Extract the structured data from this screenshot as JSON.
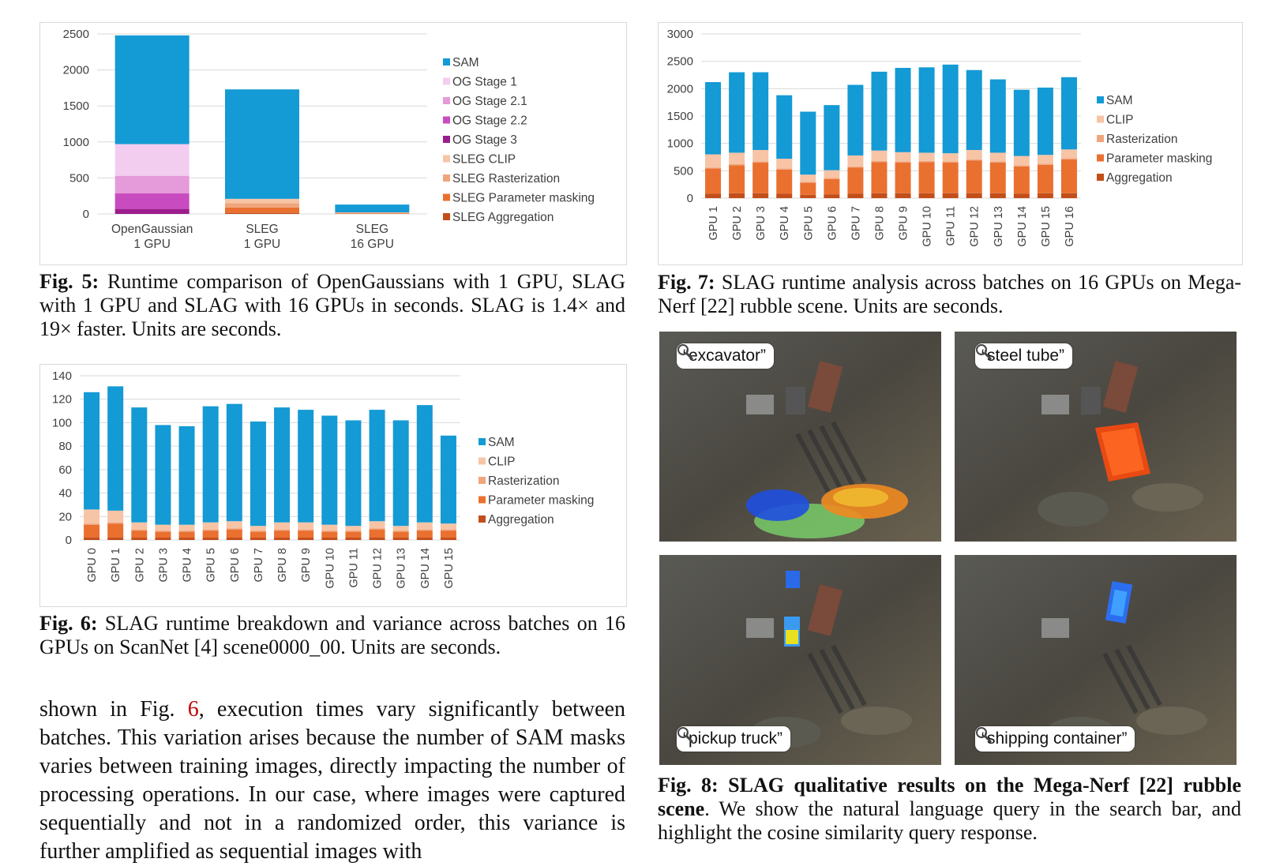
{
  "fig5": {
    "caption_label": "Fig. 5:",
    "caption_text": "Runtime comparison of OpenGaussians with 1 GPU, SLAG with 1 GPU and SLAG with 16 GPUs in seconds. SLAG is 1.4× and 19× faster. Units are seconds."
  },
  "fig6": {
    "caption_label": "Fig. 6:",
    "caption_text": "SLAG runtime breakdown and variance across batches on 16 GPUs on ScanNet [4] scene0000_00. Units are seconds."
  },
  "fig7": {
    "caption_label": "Fig. 7:",
    "caption_text": "SLAG runtime analysis across batches on 16 GPUs on Mega-Nerf [22] rubble scene. Units are seconds."
  },
  "fig8": {
    "caption_label": "Fig. 8:",
    "caption_bold": "SLAG qualitative results on the Mega-Nerf [22] rubble scene",
    "caption_text": ". We show the natural language query in the search bar, and highlight the cosine similarity query response.",
    "queries": [
      "“excavator”",
      "“steel tube”",
      "“pickup truck”",
      "“shipping container”"
    ]
  },
  "body": {
    "prefix": "shown in Fig. ",
    "ref": "6",
    "rest": ", execution times vary significantly between batches. This variation arises because the number of SAM masks varies between training images, directly impacting the number of processing operations. In our case, where images were captured sequentially and not in a randomized order, this variance is further amplified as sequential images with"
  },
  "colors": {
    "SAM": "#149ad4",
    "OG Stage 1": "#f3cdf0",
    "OG Stage 2.1": "#e59ad9",
    "OG Stage 2.2": "#c84cc0",
    "OG Stage 3": "#9c1d8e",
    "CLIP": "#f7c4a6",
    "Rasterization": "#f0a57c",
    "Parameter masking": "#ea7030",
    "Aggregation": "#c24e1a"
  },
  "chart_data": [
    {
      "id": "fig5",
      "type": "bar",
      "stacked": true,
      "categories": [
        [
          "OpenGaussian",
          "1 GPU"
        ],
        [
          "SLEG",
          "1 GPU"
        ],
        [
          "SLEG",
          "16 GPU"
        ]
      ],
      "ylim": [
        0,
        2500
      ],
      "yticks": [
        0,
        500,
        1000,
        1500,
        2000,
        2500
      ],
      "grid": true,
      "legend_position": "right",
      "legend": [
        "SAM",
        "OG Stage 1",
        "OG Stage 2.1",
        "OG Stage 2.2",
        "OG Stage 3",
        "SLEG CLIP",
        "SLEG Rasterization",
        "SLEG Parameter masking",
        "SLEG Aggregation"
      ],
      "series": [
        {
          "name": "OG Stage 3",
          "color_key": "OG Stage 3",
          "values": [
            70,
            0,
            0
          ]
        },
        {
          "name": "OG Stage 2.2",
          "color_key": "OG Stage 2.2",
          "values": [
            215,
            0,
            0
          ]
        },
        {
          "name": "OG Stage 2.1",
          "color_key": "OG Stage 2.1",
          "values": [
            245,
            0,
            0
          ]
        },
        {
          "name": "OG Stage 1",
          "color_key": "OG Stage 1",
          "values": [
            440,
            0,
            0
          ]
        },
        {
          "name": "SLEG Aggregation",
          "color_key": "Aggregation",
          "values": [
            0,
            15,
            2
          ]
        },
        {
          "name": "SLEG Parameter masking",
          "color_key": "Parameter masking",
          "values": [
            0,
            75,
            8
          ]
        },
        {
          "name": "SLEG Rasterization",
          "color_key": "Rasterization",
          "values": [
            0,
            60,
            6
          ]
        },
        {
          "name": "SLEG CLIP",
          "color_key": "CLIP",
          "values": [
            0,
            60,
            6
          ]
        },
        {
          "name": "SAM",
          "color_key": "SAM",
          "values": [
            1510,
            1520,
            108
          ]
        }
      ]
    },
    {
      "id": "fig6",
      "type": "bar",
      "stacked": true,
      "categories": [
        "GPU 0",
        "GPU 1",
        "GPU 2",
        "GPU 3",
        "GPU 4",
        "GPU 5",
        "GPU 6",
        "GPU 7",
        "GPU 8",
        "GPU 9",
        "GPU 10",
        "GPU 11",
        "GPU 12",
        "GPU 13",
        "GPU 14",
        "GPU 15"
      ],
      "ylim": [
        0,
        140
      ],
      "yticks": [
        0,
        20,
        40,
        60,
        80,
        100,
        120,
        140
      ],
      "grid": true,
      "legend_position": "right",
      "legend": [
        "SAM",
        "CLIP",
        "Rasterization",
        "Parameter masking",
        "Aggregation"
      ],
      "series": [
        {
          "name": "Aggregation",
          "values": [
            2,
            2,
            2,
            2,
            2,
            2,
            2,
            2,
            2,
            2,
            2,
            2,
            2,
            2,
            2,
            2
          ]
        },
        {
          "name": "Parameter masking",
          "values": [
            11,
            12,
            6,
            5,
            5,
            6,
            7,
            5,
            6,
            6,
            5,
            5,
            7,
            5,
            6,
            6
          ]
        },
        {
          "name": "Rasterization",
          "values": [
            1,
            1,
            1,
            1,
            1,
            1,
            1,
            1,
            1,
            1,
            1,
            1,
            1,
            1,
            1,
            1
          ]
        },
        {
          "name": "CLIP",
          "values": [
            12,
            10,
            6,
            5,
            5,
            6,
            6,
            4,
            6,
            6,
            5,
            4,
            6,
            4,
            6,
            5
          ]
        },
        {
          "name": "SAM",
          "values": [
            100,
            106,
            98,
            85,
            84,
            99,
            100,
            89,
            98,
            96,
            93,
            90,
            95,
            90,
            100,
            75
          ]
        }
      ]
    },
    {
      "id": "fig7",
      "type": "bar",
      "stacked": true,
      "categories": [
        "GPU 1",
        "GPU 2",
        "GPU 3",
        "GPU 4",
        "GPU 5",
        "GPU 6",
        "GPU 7",
        "GPU 8",
        "GPU 9",
        "GPU 10",
        "GPU 11",
        "GPU 12",
        "GPU 13",
        "GPU 14",
        "GPU 15",
        "GPU 16"
      ],
      "ylim": [
        0,
        3000
      ],
      "yticks": [
        0,
        500,
        1000,
        1500,
        2000,
        2500,
        3000
      ],
      "grid": true,
      "legend_position": "right",
      "legend": [
        "SAM",
        "CLIP",
        "Rasterization",
        "Parameter masking",
        "Aggregation"
      ],
      "series": [
        {
          "name": "Aggregation",
          "values": [
            80,
            90,
            90,
            80,
            60,
            70,
            80,
            90,
            90,
            90,
            90,
            90,
            90,
            80,
            90,
            90
          ]
        },
        {
          "name": "Parameter masking",
          "values": [
            460,
            510,
            560,
            440,
            220,
            280,
            480,
            570,
            560,
            570,
            560,
            600,
            560,
            500,
            520,
            620
          ]
        },
        {
          "name": "Rasterization",
          "values": [
            20,
            20,
            20,
            20,
            20,
            20,
            20,
            20,
            20,
            20,
            20,
            20,
            20,
            20,
            20,
            20
          ]
        },
        {
          "name": "CLIP",
          "values": [
            240,
            210,
            210,
            180,
            130,
            140,
            200,
            190,
            170,
            150,
            150,
            170,
            160,
            170,
            160,
            160
          ]
        },
        {
          "name": "SAM",
          "values": [
            1320,
            1470,
            1420,
            1160,
            1150,
            1190,
            1290,
            1440,
            1540,
            1560,
            1620,
            1460,
            1340,
            1210,
            1230,
            1320
          ]
        }
      ]
    }
  ]
}
